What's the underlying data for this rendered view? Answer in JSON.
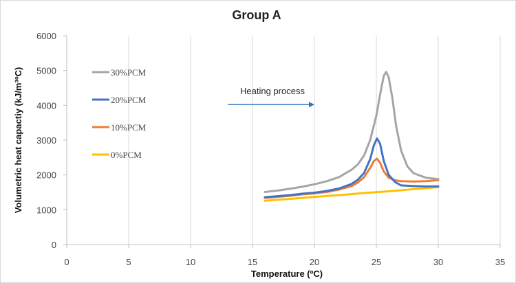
{
  "chart_data": {
    "type": "line",
    "title": "Group A",
    "xlabel": "Temperature (ºC)",
    "ylabel": "Volumetric heat capactiy (kJ/m³ºC)",
    "xlim": [
      0,
      35
    ],
    "ylim": [
      0,
      6000
    ],
    "xticks": [
      0,
      5,
      10,
      15,
      20,
      25,
      30,
      35
    ],
    "yticks": [
      0,
      1000,
      2000,
      3000,
      4000,
      5000,
      6000
    ],
    "grid": "vertical",
    "legend_position": "left",
    "annotation": {
      "text": "Heating process",
      "arrow_from": [
        13,
        4200
      ],
      "arrow_to": [
        20,
        4200
      ],
      "color": "#2e75b6"
    },
    "series": [
      {
        "name": "30%PCM",
        "color": "#a5a5a5",
        "points": [
          [
            16,
            1510
          ],
          [
            17,
            1550
          ],
          [
            18,
            1600
          ],
          [
            19,
            1660
          ],
          [
            20,
            1730
          ],
          [
            21,
            1820
          ],
          [
            22,
            1940
          ],
          [
            23,
            2150
          ],
          [
            23.5,
            2300
          ],
          [
            24,
            2550
          ],
          [
            24.5,
            3000
          ],
          [
            25,
            3700
          ],
          [
            25.3,
            4300
          ],
          [
            25.6,
            4850
          ],
          [
            25.8,
            4960
          ],
          [
            26,
            4800
          ],
          [
            26.3,
            4200
          ],
          [
            26.6,
            3400
          ],
          [
            27,
            2700
          ],
          [
            27.5,
            2250
          ],
          [
            28,
            2050
          ],
          [
            29,
            1920
          ],
          [
            30,
            1880
          ]
        ]
      },
      {
        "name": "20%PCM",
        "color": "#4472c4",
        "points": [
          [
            16,
            1360
          ],
          [
            17,
            1390
          ],
          [
            18,
            1420
          ],
          [
            19,
            1460
          ],
          [
            20,
            1490
          ],
          [
            21,
            1540
          ],
          [
            22,
            1610
          ],
          [
            23,
            1740
          ],
          [
            23.5,
            1860
          ],
          [
            24,
            2050
          ],
          [
            24.5,
            2450
          ],
          [
            24.8,
            2850
          ],
          [
            25.05,
            3050
          ],
          [
            25.3,
            2900
          ],
          [
            25.6,
            2400
          ],
          [
            26,
            2000
          ],
          [
            26.5,
            1800
          ],
          [
            27,
            1700
          ],
          [
            28,
            1680
          ],
          [
            29,
            1670
          ],
          [
            30,
            1670
          ]
        ]
      },
      {
        "name": "10%PCM",
        "color": "#ed7d31",
        "points": [
          [
            16,
            1340
          ],
          [
            17,
            1370
          ],
          [
            18,
            1400
          ],
          [
            19,
            1440
          ],
          [
            20,
            1470
          ],
          [
            21,
            1510
          ],
          [
            22,
            1580
          ],
          [
            23,
            1680
          ],
          [
            23.5,
            1780
          ],
          [
            24,
            1930
          ],
          [
            24.5,
            2200
          ],
          [
            24.8,
            2400
          ],
          [
            25.05,
            2470
          ],
          [
            25.3,
            2350
          ],
          [
            25.6,
            2100
          ],
          [
            26,
            1920
          ],
          [
            26.5,
            1850
          ],
          [
            27,
            1820
          ],
          [
            28,
            1810
          ],
          [
            29,
            1820
          ],
          [
            30,
            1850
          ]
        ]
      },
      {
        "name": "0%PCM",
        "color": "#ffc000",
        "points": [
          [
            16,
            1260
          ],
          [
            18,
            1310
          ],
          [
            20,
            1370
          ],
          [
            22,
            1420
          ],
          [
            24,
            1480
          ],
          [
            26,
            1530
          ],
          [
            28,
            1590
          ],
          [
            30,
            1650
          ]
        ]
      }
    ]
  }
}
